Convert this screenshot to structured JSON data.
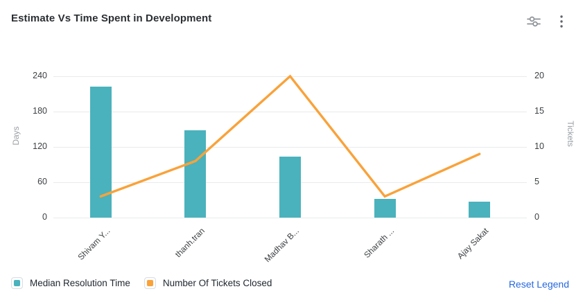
{
  "header": {
    "title": "Estimate Vs Time Spent in Development",
    "settings_icon": "sliders-icon",
    "menu_icon": "kebab-menu-icon"
  },
  "chart_data": {
    "type": "combo-bar-line",
    "title": "Estimate Vs Time Spent in Development",
    "categories": [
      "Shivam Y...",
      "thanh.tran",
      "Madhav B...",
      "Sharath ...",
      "Ajay Sakat"
    ],
    "series": [
      {
        "name": "Median Resolution Time",
        "type": "bar",
        "y_axis": "left",
        "color": "#4ab2bc",
        "values": [
          222,
          148,
          104,
          32,
          27
        ]
      },
      {
        "name": "Number Of Tickets Closed",
        "type": "line",
        "y_axis": "right",
        "color": "#f9a23a",
        "values": [
          3,
          8,
          20,
          3,
          9
        ]
      }
    ],
    "left_axis": {
      "label": "Days",
      "min": 0,
      "max": 240,
      "ticks": [
        0,
        60,
        120,
        180,
        240
      ]
    },
    "right_axis": {
      "label": "Tickets",
      "min": 0,
      "max": 20,
      "ticks": [
        0,
        5,
        10,
        15,
        20
      ]
    },
    "grid": true,
    "gridline_color": "#e9eaec",
    "legend_position": "bottom-left",
    "x_label_rotation": -45
  },
  "legend": {
    "items": [
      {
        "label": "Median Resolution Time",
        "color": "#4ab2bc"
      },
      {
        "label": "Number Of Tickets Closed",
        "color": "#f9a23a"
      }
    ],
    "reset_label": "Reset Legend",
    "reset_color": "#2667e0"
  }
}
